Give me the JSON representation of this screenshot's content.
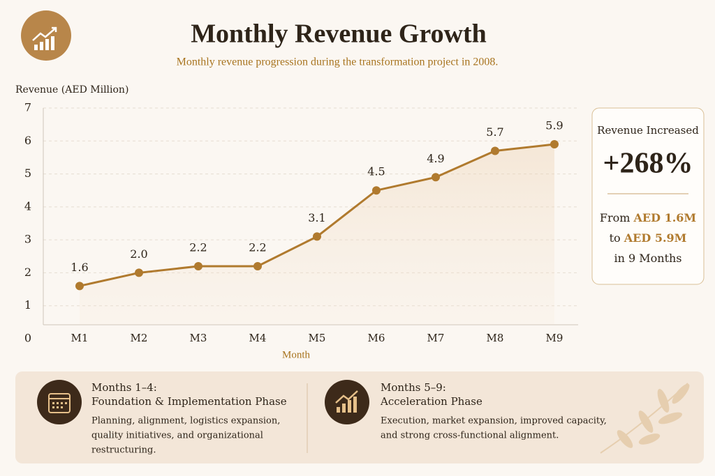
{
  "chart_data": {
    "type": "line",
    "title": "Monthly Revenue Growth",
    "subtitle": "Monthly revenue progression during the transformation project in 2008.",
    "y_label": "Revenue (AED Million)",
    "x_label": "Month",
    "categories": [
      "M1",
      "M2",
      "M3",
      "M4",
      "M5",
      "M6",
      "M7",
      "M8",
      "M9"
    ],
    "values": [
      1.6,
      2,
      2.2,
      2.2,
      3.1,
      4.5,
      4.9,
      5.7,
      5.9
    ],
    "value_labels": [
      "1.6",
      "2.0",
      "2.2",
      "2.2",
      "3.1",
      "4.5",
      "4.9",
      "5.7",
      "5.9"
    ],
    "color": "#b07a2e",
    "ylim": [
      0,
      7
    ],
    "yticks": [
      0,
      1,
      2,
      3,
      4,
      5,
      6,
      7
    ],
    "grid": true
  },
  "summary_card": {
    "heading": "Revenue Increased",
    "big_value": "+268%",
    "lines": [
      {
        "text": "From",
        "highlight": "AED 1.6M"
      },
      {
        "text": "to",
        "highlight": "AED 5.9M"
      },
      {
        "text": "in 9 Months"
      }
    ]
  },
  "phases": [
    {
      "title_line1": "Months 1–4:",
      "title_line2": "Foundation & Implementation Phase",
      "description": [
        "Planning, alignment, logistics expansion,",
        "quality initiatives, and organizational",
        "restructuring."
      ]
    },
    {
      "title_line1": "Months 5–9:",
      "title_line2": "Acceleration Phase",
      "description": [
        "Execution, market expansion, improved capacity,",
        "and strong cross-functional alignment."
      ]
    }
  ]
}
